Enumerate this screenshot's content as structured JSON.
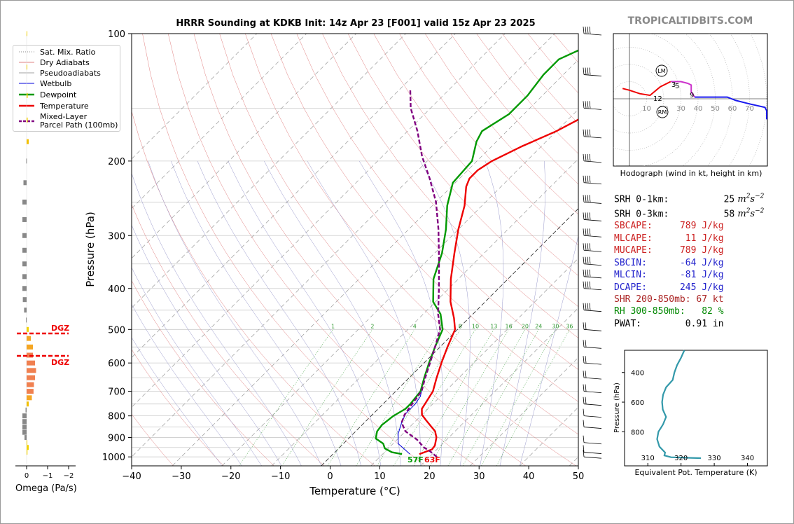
{
  "title": "HRRR Sounding at KDKB Init: 14z Apr 23 [F001] valid 15z Apr 23 2025",
  "brand": "TROPICALTIDBITS.COM",
  "main_chart": {
    "xlabel": "Temperature (°C)",
    "ylabel": "Pressure (hPa)",
    "x_ticks": [
      "−40",
      "−30",
      "−20",
      "−10",
      "0",
      "10",
      "20",
      "30",
      "40",
      "50"
    ],
    "p_ticks": [
      "100",
      "200",
      "300",
      "400",
      "500",
      "600",
      "700",
      "800",
      "900",
      "1000"
    ],
    "mixing_ratio_labels": [
      "1",
      "2",
      "4",
      "6",
      "8",
      "10",
      "13",
      "16",
      "20",
      "24",
      "30",
      "36"
    ],
    "surface_dewpoint_label": "57F",
    "surface_temperature_label": "63F"
  },
  "legend": {
    "items": [
      {
        "label": "Sat. Mix. Ratio",
        "color": "#888888",
        "style": "dotted"
      },
      {
        "label": "Dry Adiabats",
        "color": "#e08080",
        "style": "solid"
      },
      {
        "label": "Pseudoadiabats",
        "color": "#a0a0a0",
        "style": "solid"
      },
      {
        "label": "Wetbulb",
        "color": "#0000dd",
        "style": "solid"
      },
      {
        "label": "Dewpoint",
        "color": "#009900",
        "style": "solid"
      },
      {
        "label": "Temperature",
        "color": "#ee0000",
        "style": "solid"
      },
      {
        "label": "Mixed-Layer",
        "label2": "Parcel Path (100mb)",
        "color": "#800080",
        "style": "dashed"
      }
    ]
  },
  "omega": {
    "xlabel": "Omega (Pa/s)",
    "ticks": [
      "0",
      "−1",
      "−2"
    ],
    "dgz_label": "DGZ"
  },
  "hodograph": {
    "caption": "Hodograph (wind in kt, height in km)",
    "ring_labels": [
      "10",
      "20",
      "30",
      "40",
      "50",
      "60",
      "70"
    ],
    "height_labels": [
      "12",
      "3",
      "5",
      "9"
    ],
    "storm_motion_labels": [
      "LM",
      "RM"
    ]
  },
  "stats": [
    {
      "label": "SRH 0-1km:",
      "value": "25",
      "unit": "m2s-2",
      "color": "#000000"
    },
    {
      "label": "SRH 0-3km:",
      "value": "58",
      "unit": "m2s-2",
      "color": "#000000"
    },
    {
      "label": "SBCAPE:",
      "value": "789 J/kg",
      "color": "#cc2222"
    },
    {
      "label": "MLCAPE:",
      "value": "11 J/kg",
      "color": "#cc2222"
    },
    {
      "label": "MUCAPE:",
      "value": "789 J/kg",
      "color": "#cc2222"
    },
    {
      "label": "SBCIN:",
      "value": "-64 J/kg",
      "color": "#2222cc"
    },
    {
      "label": "MLCIN:",
      "value": "-81 J/kg",
      "color": "#2222cc"
    },
    {
      "label": "DCAPE:",
      "value": "245 J/kg",
      "color": "#2222cc"
    },
    {
      "label": "SHR 200-850mb:",
      "value": "67 kt",
      "color": "#aa2222"
    },
    {
      "label": "RH 300-850mb:",
      "value": "82 %",
      "color": "#008800"
    },
    {
      "label": "PWAT:",
      "value": "0.91 in",
      "color": "#000000"
    }
  ],
  "theta_e_chart": {
    "xlabel": "Equivalent Pot. Temperature (K)",
    "ylabel": "Pressure (hPa)",
    "x_ticks": [
      "310",
      "320",
      "330",
      "340"
    ],
    "y_ticks": [
      "400",
      "600",
      "800"
    ]
  },
  "chart_data": [
    {
      "type": "line",
      "title": "HRRR Sounding at KDKB Init: 14z Apr 23 [F001] valid 15z Apr 23 2025",
      "xlabel": "Temperature (°C)",
      "ylabel": "Pressure (hPa)",
      "xlim": [
        -40,
        50
      ],
      "ylim": [
        1050,
        100
      ],
      "log_y": true,
      "skew": true,
      "series": [
        {
          "name": "Temperature",
          "color": "#ee0000",
          "points": [
            [
              17.4,
              985
            ],
            [
              19,
              960
            ],
            [
              18.8,
              940
            ],
            [
              17.5,
              900
            ],
            [
              16,
              870
            ],
            [
              12,
              820
            ],
            [
              10,
              795
            ],
            [
              8.8,
              770
            ],
            [
              7.5,
              700
            ],
            [
              5.5,
              650
            ],
            [
              3.5,
              600
            ],
            [
              1.5,
              550
            ],
            [
              -0.5,
              500
            ],
            [
              -3,
              470
            ],
            [
              -7,
              430
            ],
            [
              -11.5,
              380
            ],
            [
              -16,
              330
            ],
            [
              -20,
              290
            ],
            [
              -23.5,
              255
            ],
            [
              -27,
              230
            ],
            [
              -28,
              220
            ],
            [
              -28,
              210
            ],
            [
              -27,
              200
            ],
            [
              -24,
              185
            ],
            [
              -20,
              170
            ],
            [
              -18,
              160
            ],
            [
              -17,
              150
            ],
            [
              -16,
              142
            ],
            [
              -13,
              130
            ],
            [
              -11,
              120
            ],
            [
              -7,
              110
            ],
            [
              -4.5,
              100
            ]
          ]
        },
        {
          "name": "Dewpoint",
          "color": "#009900",
          "points": [
            [
              13.9,
              985
            ],
            [
              11.5,
              975
            ],
            [
              9.3,
              955
            ],
            [
              8,
              930
            ],
            [
              5.5,
              905
            ],
            [
              4.3,
              870
            ],
            [
              4,
              840
            ],
            [
              4.5,
              800
            ],
            [
              5.5,
              770
            ],
            [
              5.5,
              750
            ],
            [
              5,
              700
            ],
            [
              3,
              650
            ],
            [
              1,
              600
            ],
            [
              -1,
              550
            ],
            [
              -3,
              500
            ],
            [
              -6.5,
              460
            ],
            [
              -10.5,
              430
            ],
            [
              -15,
              380
            ],
            [
              -18.5,
              330
            ],
            [
              -22.5,
              290
            ],
            [
              -27,
              255
            ],
            [
              -30.5,
              225
            ],
            [
              -31,
              200
            ],
            [
              -34,
              180
            ],
            [
              -35,
              170
            ],
            [
              -33,
              155
            ],
            [
              -33,
              140
            ],
            [
              -34,
              125
            ],
            [
              -34,
              115
            ],
            [
              -30,
              105
            ],
            [
              -29,
              100
            ]
          ]
        },
        {
          "name": "Wetbulb",
          "color": "#0000dd",
          "points": [
            [
              15.5,
              985
            ],
            [
              13.5,
              960
            ],
            [
              11,
              930
            ],
            [
              9,
              880
            ],
            [
              7.5,
              830
            ],
            [
              6.5,
              790
            ],
            [
              6.5,
              750
            ],
            [
              6,
              720
            ],
            [
              5.2,
              700
            ]
          ]
        },
        {
          "name": "Mixed-Layer Parcel Path (100mb)",
          "color": "#800080",
          "points": [
            [
              21.5,
              1000
            ],
            [
              19,
              970
            ],
            [
              17,
              950
            ],
            [
              14,
              910
            ],
            [
              10,
              870
            ],
            [
              7.5,
              830
            ],
            [
              6.5,
              795
            ],
            [
              6,
              760
            ],
            [
              5.2,
              700
            ],
            [
              3.2,
              650
            ],
            [
              1.2,
              600
            ],
            [
              -1,
              550
            ],
            [
              -3.5,
              500
            ],
            [
              -7,
              460
            ],
            [
              -12,
              400
            ],
            [
              -18,
              340
            ],
            [
              -24,
              290
            ],
            [
              -30,
              250
            ],
            [
              -36,
              220
            ],
            [
              -42,
              195
            ],
            [
              -48,
              170
            ],
            [
              -54,
              150
            ],
            [
              -58,
              135
            ]
          ]
        }
      ]
    },
    {
      "type": "bar",
      "xlabel": "Omega (Pa/s)",
      "xlim": [
        0.3,
        -2.5
      ],
      "bars": [
        {
          "p": 100,
          "omega": -0.02,
          "color": "#f2d200"
        },
        {
          "p": 120,
          "omega": -0.02,
          "color": "#f2d200"
        },
        {
          "p": 140,
          "omega": -0.05,
          "color": "#f2d200"
        },
        {
          "p": 160,
          "omega": -0.05,
          "color": "#f2d200"
        },
        {
          "p": 180,
          "omega": -0.1,
          "color": "#f2c000"
        },
        {
          "p": 200,
          "omega": 0.02,
          "color": "#888888"
        },
        {
          "p": 225,
          "omega": 0.15,
          "color": "#888888"
        },
        {
          "p": 250,
          "omega": 0.2,
          "color": "#888888"
        },
        {
          "p": 275,
          "omega": 0.2,
          "color": "#888888"
        },
        {
          "p": 300,
          "omega": 0.2,
          "color": "#888888"
        },
        {
          "p": 325,
          "omega": 0.2,
          "color": "#888888"
        },
        {
          "p": 350,
          "omega": 0.2,
          "color": "#888888"
        },
        {
          "p": 375,
          "omega": 0.2,
          "color": "#888888"
        },
        {
          "p": 400,
          "omega": 0.2,
          "color": "#888888"
        },
        {
          "p": 425,
          "omega": 0.18,
          "color": "#888888"
        },
        {
          "p": 450,
          "omega": 0.12,
          "color": "#888888"
        },
        {
          "p": 475,
          "omega": 0.03,
          "color": "#888888"
        },
        {
          "p": 500,
          "omega": -0.1,
          "color": "#f2d200"
        },
        {
          "p": 525,
          "omega": -0.2,
          "color": "#f5a623"
        },
        {
          "p": 550,
          "omega": -0.3,
          "color": "#f5a623"
        },
        {
          "p": 575,
          "omega": -0.3,
          "color": "#f08050"
        },
        {
          "p": 600,
          "omega": -0.4,
          "color": "#f08050"
        },
        {
          "p": 625,
          "omega": -0.45,
          "color": "#f08050"
        },
        {
          "p": 650,
          "omega": -0.4,
          "color": "#f08050"
        },
        {
          "p": 675,
          "omega": -0.35,
          "color": "#f08050"
        },
        {
          "p": 700,
          "omega": -0.33,
          "color": "#f08050"
        },
        {
          "p": 725,
          "omega": -0.25,
          "color": "#f5a623"
        },
        {
          "p": 750,
          "omega": -0.1,
          "color": "#f2c000"
        },
        {
          "p": 775,
          "omega": 0.05,
          "color": "#888888"
        },
        {
          "p": 800,
          "omega": 0.2,
          "color": "#888888"
        },
        {
          "p": 825,
          "omega": 0.2,
          "color": "#888888"
        },
        {
          "p": 850,
          "omega": 0.2,
          "color": "#888888"
        },
        {
          "p": 875,
          "omega": 0.2,
          "color": "#888888"
        },
        {
          "p": 900,
          "omega": 0.1,
          "color": "#888888"
        },
        {
          "p": 925,
          "omega": -0.02,
          "color": "#f2d200"
        },
        {
          "p": 950,
          "omega": -0.1,
          "color": "#f2d200"
        },
        {
          "p": 975,
          "omega": -0.04,
          "color": "#f2d200"
        }
      ],
      "dgz": [
        510,
        575
      ]
    },
    {
      "type": "line",
      "title": "Hodograph",
      "xlim": [
        -10,
        80
      ],
      "ylim": [
        -40,
        35
      ],
      "series": [
        {
          "name": "0-3 km",
          "color": "#ee0000",
          "points": [
            [
              -4,
              6
            ],
            [
              0,
              5
            ],
            [
              6,
              3
            ],
            [
              12,
              2
            ],
            [
              18,
              7
            ],
            [
              24,
              10
            ]
          ]
        },
        {
          "name": "3-9 km",
          "color": "#cc33cc",
          "points": [
            [
              24,
              10
            ],
            [
              30,
              10
            ],
            [
              34,
              9
            ],
            [
              36,
              8
            ],
            [
              36,
              6
            ],
            [
              36,
              4
            ],
            [
              38,
              1
            ]
          ]
        },
        {
          "name": "9-12 km",
          "color": "#1a1aee",
          "points": [
            [
              38,
              1
            ],
            [
              45,
              1
            ],
            [
              53,
              1
            ],
            [
              57,
              1
            ],
            [
              62,
              -1
            ],
            [
              70,
              -3
            ],
            [
              79,
              -5
            ],
            [
              80,
              -7
            ],
            [
              80,
              -12
            ]
          ]
        }
      ]
    },
    {
      "type": "line",
      "title": "Equivalent Potential Temperature",
      "xlabel": "Equivalent Pot. Temperature (K)",
      "ylabel": "Pressure (hPa)",
      "xlim": [
        303,
        346
      ],
      "ylim": [
        1030,
        250
      ],
      "series": [
        {
          "name": "theta-e",
          "color": "#3399aa",
          "points": [
            [
              321,
              250
            ],
            [
              320,
              300
            ],
            [
              318.8,
              350
            ],
            [
              318,
              400
            ],
            [
              317.5,
              450
            ],
            [
              315.5,
              500
            ],
            [
              314.6,
              550
            ],
            [
              314.3,
              600
            ],
            [
              314.5,
              650
            ],
            [
              315.5,
              700
            ],
            [
              314.6,
              750
            ],
            [
              313.2,
              800
            ],
            [
              312.8,
              850
            ],
            [
              313.5,
              900
            ],
            [
              315.2,
              940
            ],
            [
              315,
              960
            ],
            [
              317,
              972
            ],
            [
              323,
              976
            ],
            [
              326,
              978
            ]
          ]
        }
      ]
    }
  ]
}
